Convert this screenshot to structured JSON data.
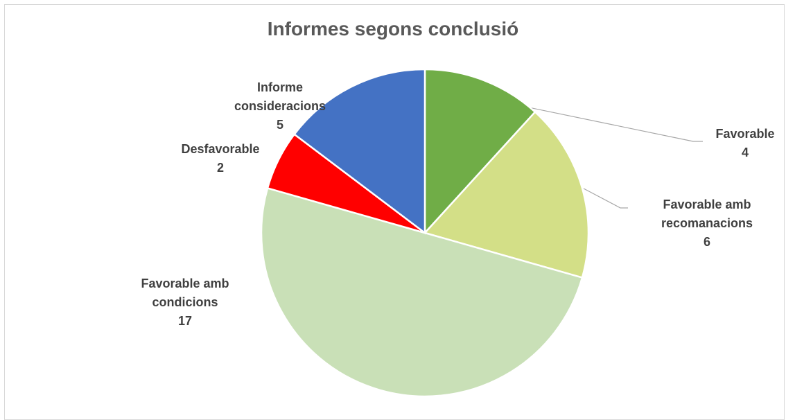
{
  "chart_data": {
    "type": "pie",
    "title": "Informes segons conclusió",
    "categories": [
      "Favorable",
      "Favorable amb recomanacions",
      "Favorable amb condicions",
      "Desfavorable",
      "Informe consideracions"
    ],
    "values": [
      4,
      6,
      17,
      2,
      5
    ],
    "colors": [
      "#70ad47",
      "#d3df87",
      "#c9e0b7",
      "#ff0000",
      "#4472c4"
    ]
  }
}
